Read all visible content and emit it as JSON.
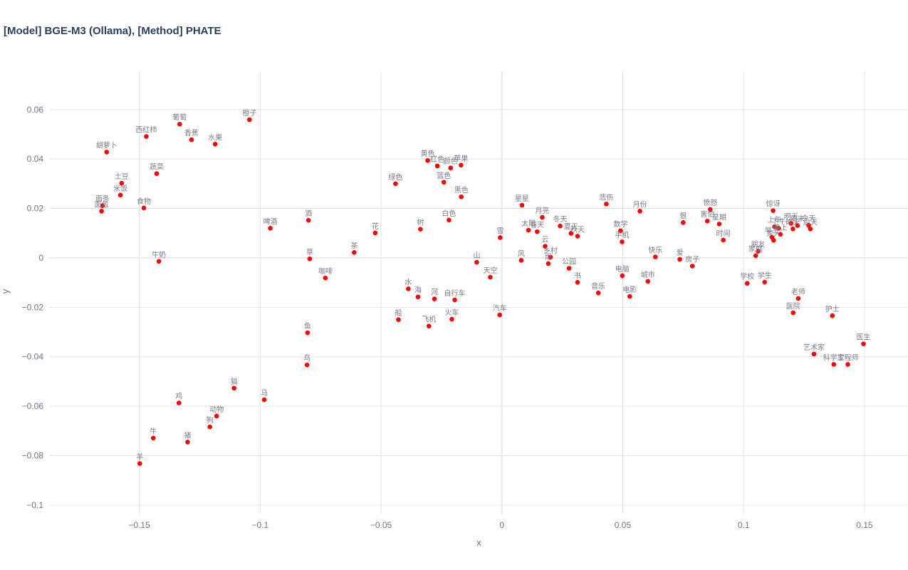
{
  "chart_data": {
    "type": "scatter",
    "title": "[Model] BGE-M3 (Ollama), [Method] PHATE",
    "xlabel": "x",
    "ylabel": "y",
    "xlim": [
      -0.187,
      0.168
    ],
    "ylim": [
      -0.1035,
      0.0755
    ],
    "x_ticks": [
      -0.15,
      -0.1,
      -0.05,
      0,
      0.05,
      0.1,
      0.15
    ],
    "x_tick_labels": [
      "−0.15",
      "−0.1",
      "−0.05",
      "0",
      "0.05",
      "0.1",
      "0.15"
    ],
    "y_ticks": [
      -0.1,
      -0.08,
      -0.06,
      -0.04,
      -0.02,
      0,
      0.02,
      0.04,
      0.06
    ],
    "y_tick_labels": [
      "−0.1",
      "−0.08",
      "−0.06",
      "−0.04",
      "−0.02",
      "0",
      "0.02",
      "0.04",
      "0.06"
    ],
    "grid": true,
    "marker_color": "#ff0000",
    "points": [
      {
        "label": "胡萝卜",
        "x": -0.1635,
        "y": 0.0428
      },
      {
        "label": "西红柿",
        "x": -0.1471,
        "y": 0.0491
      },
      {
        "label": "葡萄",
        "x": -0.1333,
        "y": 0.0541
      },
      {
        "label": "香蕉",
        "x": -0.1284,
        "y": 0.0478
      },
      {
        "label": "水果",
        "x": -0.1186,
        "y": 0.046
      },
      {
        "label": "橙子",
        "x": -0.1044,
        "y": 0.0559
      },
      {
        "label": "蔬菜",
        "x": -0.1428,
        "y": 0.0341
      },
      {
        "label": "土豆",
        "x": -0.1573,
        "y": 0.0302
      },
      {
        "label": "米饭",
        "x": -0.1578,
        "y": 0.0254
      },
      {
        "label": "面条",
        "x": -0.1652,
        "y": 0.0211
      },
      {
        "label": "面包",
        "x": -0.1656,
        "y": 0.0189
      },
      {
        "label": "食物",
        "x": -0.1481,
        "y": 0.0202
      },
      {
        "label": "牛奶",
        "x": -0.1419,
        "y": -0.0014
      },
      {
        "label": "啤酒",
        "x": -0.0958,
        "y": 0.012
      },
      {
        "label": "酒",
        "x": -0.08,
        "y": 0.0152
      },
      {
        "label": "草",
        "x": -0.0795,
        "y": -0.0004
      },
      {
        "label": "咖啡",
        "x": -0.073,
        "y": -0.0081
      },
      {
        "label": "茶",
        "x": -0.0611,
        "y": 0.0022
      },
      {
        "label": "花",
        "x": -0.0524,
        "y": 0.0101
      },
      {
        "label": "绿色",
        "x": -0.044,
        "y": 0.03
      },
      {
        "label": "树",
        "x": -0.0337,
        "y": 0.0116
      },
      {
        "label": "黄色",
        "x": -0.0307,
        "y": 0.0394
      },
      {
        "label": "红色",
        "x": -0.0267,
        "y": 0.0372
      },
      {
        "label": "颜色",
        "x": -0.0212,
        "y": 0.0364
      },
      {
        "label": "苹果",
        "x": -0.0169,
        "y": 0.0375
      },
      {
        "label": "蓝色",
        "x": -0.024,
        "y": 0.0306
      },
      {
        "label": "黑色",
        "x": -0.0168,
        "y": 0.0247
      },
      {
        "label": "白色",
        "x": -0.0219,
        "y": 0.0153
      },
      {
        "label": "雪",
        "x": -0.0007,
        "y": 0.0082
      },
      {
        "label": "山",
        "x": -0.0104,
        "y": -0.0018
      },
      {
        "label": "天空",
        "x": -0.0048,
        "y": -0.0078
      },
      {
        "label": "水",
        "x": -0.0387,
        "y": -0.0125
      },
      {
        "label": "海",
        "x": -0.0347,
        "y": -0.0158
      },
      {
        "label": "河",
        "x": -0.0279,
        "y": -0.0166
      },
      {
        "label": "自行车",
        "x": -0.0195,
        "y": -0.017
      },
      {
        "label": "船",
        "x": -0.0428,
        "y": -0.025
      },
      {
        "label": "飞机",
        "x": -0.0302,
        "y": -0.0276
      },
      {
        "label": "火车",
        "x": -0.0207,
        "y": -0.0248
      },
      {
        "label": "汽车",
        "x": -0.0009,
        "y": -0.0231
      },
      {
        "label": "鱼",
        "x": -0.0804,
        "y": -0.0303
      },
      {
        "label": "鸟",
        "x": -0.0806,
        "y": -0.0433
      },
      {
        "label": "猫",
        "x": -0.1108,
        "y": -0.0527
      },
      {
        "label": "马",
        "x": -0.0983,
        "y": -0.0574
      },
      {
        "label": "鸡",
        "x": -0.1336,
        "y": -0.0587
      },
      {
        "label": "动物",
        "x": -0.118,
        "y": -0.064
      },
      {
        "label": "狗",
        "x": -0.1208,
        "y": -0.0684
      },
      {
        "label": "牛",
        "x": -0.1442,
        "y": -0.0729
      },
      {
        "label": "猪",
        "x": -0.13,
        "y": -0.0745
      },
      {
        "label": "羊",
        "x": -0.1498,
        "y": -0.0832
      },
      {
        "label": "星星",
        "x": 0.0083,
        "y": 0.0213
      },
      {
        "label": "月亮",
        "x": 0.0167,
        "y": 0.0164
      },
      {
        "label": "太阳",
        "x": 0.011,
        "y": 0.0112
      },
      {
        "label": "春天",
        "x": 0.0146,
        "y": 0.0106
      },
      {
        "label": "冬天",
        "x": 0.0241,
        "y": 0.0129
      },
      {
        "label": "夏天",
        "x": 0.0286,
        "y": 0.0099
      },
      {
        "label": "秋天",
        "x": 0.0313,
        "y": 0.0088
      },
      {
        "label": "云",
        "x": 0.0179,
        "y": 0.0047
      },
      {
        "label": "乡村",
        "x": 0.0201,
        "y": 0.0003
      },
      {
        "label": "雨",
        "x": 0.0192,
        "y": -0.0023
      },
      {
        "label": "风",
        "x": 0.008,
        "y": -0.001
      },
      {
        "label": "公园",
        "x": 0.0278,
        "y": -0.0042
      },
      {
        "label": "书",
        "x": 0.0313,
        "y": -0.0099
      },
      {
        "label": "音乐",
        "x": 0.0399,
        "y": -0.0142
      },
      {
        "label": "悲伤",
        "x": 0.0432,
        "y": 0.0218
      },
      {
        "label": "月份",
        "x": 0.0571,
        "y": 0.0189
      },
      {
        "label": "数学",
        "x": 0.0491,
        "y": 0.011
      },
      {
        "label": "手机",
        "x": 0.0497,
        "y": 0.0065
      },
      {
        "label": "电脑",
        "x": 0.0498,
        "y": -0.0072
      },
      {
        "label": "电影",
        "x": 0.0529,
        "y": -0.0156
      },
      {
        "label": "快乐",
        "x": 0.0635,
        "y": 0.0004
      },
      {
        "label": "城市",
        "x": 0.0604,
        "y": -0.0095
      },
      {
        "label": "爱",
        "x": 0.0736,
        "y": -0.0006
      },
      {
        "label": "房子",
        "x": 0.0788,
        "y": -0.0033
      },
      {
        "label": "恨",
        "x": 0.075,
        "y": 0.0143
      },
      {
        "label": "愤怒",
        "x": 0.0862,
        "y": 0.0196
      },
      {
        "label": "害怕",
        "x": 0.085,
        "y": 0.0149
      },
      {
        "label": "星期",
        "x": 0.0899,
        "y": 0.0137
      },
      {
        "label": "时间",
        "x": 0.0916,
        "y": 0.0072
      },
      {
        "label": "惊讶",
        "x": 0.1122,
        "y": 0.0191
      },
      {
        "label": "明天",
        "x": 0.1196,
        "y": 0.014
      },
      {
        "label": "昨天",
        "x": 0.1204,
        "y": 0.0117
      },
      {
        "label": "今天",
        "x": 0.1269,
        "y": 0.0132
      },
      {
        "label": "后天",
        "x": 0.1276,
        "y": 0.0117
      },
      {
        "label": "上午",
        "x": 0.1128,
        "y": 0.0126
      },
      {
        "label": "下午",
        "x": 0.1145,
        "y": 0.012
      },
      {
        "label": "晚上",
        "x": 0.1152,
        "y": 0.0095
      },
      {
        "label": "早上",
        "x": 0.1117,
        "y": 0.0084
      },
      {
        "label": "周末",
        "x": 0.1223,
        "y": 0.0131
      },
      {
        "label": "家人",
        "x": 0.1124,
        "y": 0.0071
      },
      {
        "label": "朋友",
        "x": 0.106,
        "y": 0.0027
      },
      {
        "label": "家庭",
        "x": 0.105,
        "y": 0.0009
      },
      {
        "label": "学校",
        "x": 0.1015,
        "y": -0.0103
      },
      {
        "label": "学生",
        "x": 0.1087,
        "y": -0.0098
      },
      {
        "label": "老师",
        "x": 0.1226,
        "y": -0.0164
      },
      {
        "label": "医院",
        "x": 0.1205,
        "y": -0.0222
      },
      {
        "label": "护士",
        "x": 0.1367,
        "y": -0.0234
      },
      {
        "label": "医生",
        "x": 0.1496,
        "y": -0.0348
      },
      {
        "label": "艺术家",
        "x": 0.1291,
        "y": -0.0389
      },
      {
        "label": "科学家",
        "x": 0.1373,
        "y": -0.0431
      },
      {
        "label": "工程师",
        "x": 0.1431,
        "y": -0.0431
      }
    ]
  }
}
